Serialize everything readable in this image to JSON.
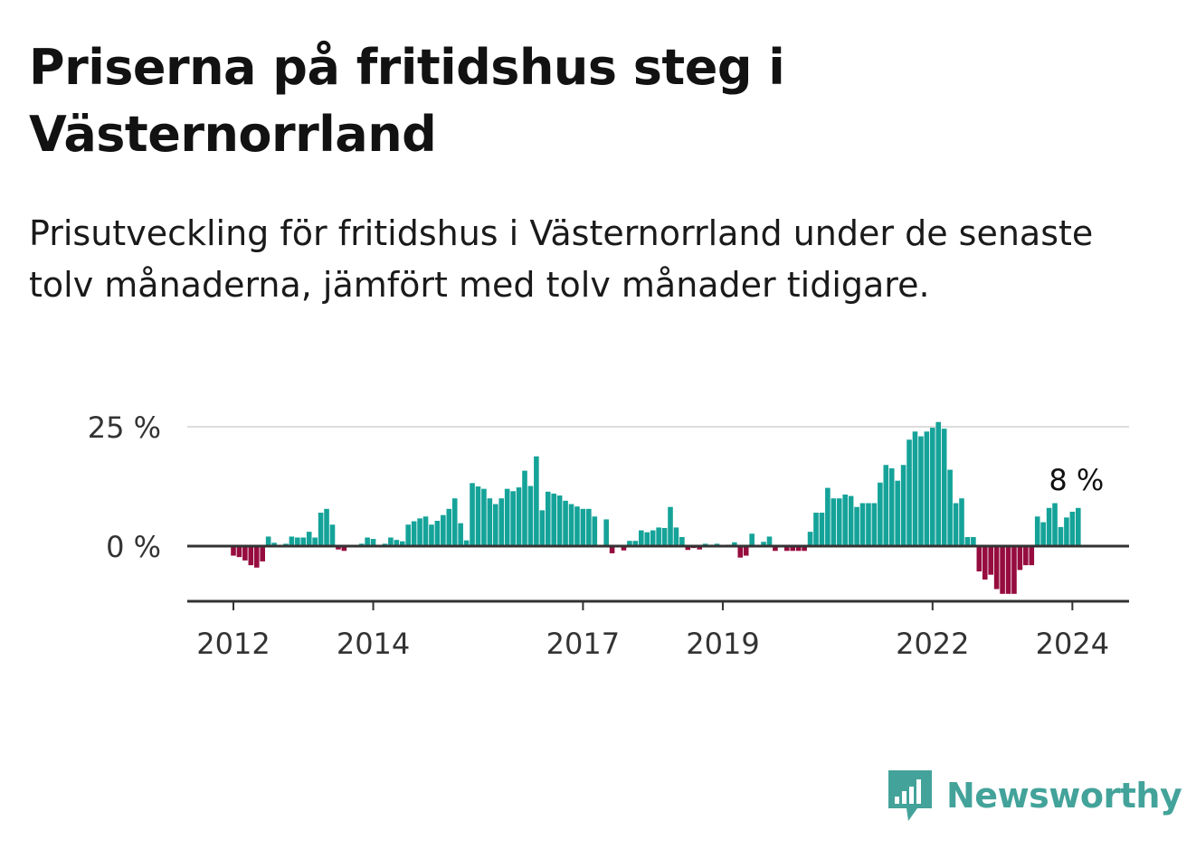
{
  "title": "Priserna på fritidshus steg i Västernorrland",
  "subtitle": "Prisutveckling för fritidshus i Västernorrland under de senaste tolv månaderna, jämfört med tolv månader tidigare.",
  "brand": {
    "name": "Newsworthy",
    "color": "#43a39a",
    "icon": "bar-chart-speech-bubble-icon"
  },
  "chart_data": {
    "type": "bar",
    "title": "",
    "xlabel": "",
    "ylabel": "",
    "ylim": [
      -11,
      27
    ],
    "yticks": [
      0,
      25
    ],
    "ytick_labels": [
      "0 %",
      "25 %"
    ],
    "xticks": [
      2012,
      2014,
      2017,
      2019,
      2022,
      2024
    ],
    "xtick_labels": [
      "2012",
      "2014",
      "2017",
      "2019",
      "2022",
      "2024"
    ],
    "colors": {
      "positive": "#15a399",
      "negative": "#960c3e",
      "grid": "#dddddd",
      "axis": "#333333"
    },
    "grid": true,
    "last_value_label": "8 %",
    "start": "2012-01",
    "values": [
      -2,
      -2.3,
      -3,
      -4,
      -4.5,
      -3.2,
      2,
      0.7,
      0,
      0.5,
      2,
      1.8,
      1.8,
      3,
      1.8,
      7,
      7.8,
      4.5,
      -0.7,
      -1,
      0,
      0,
      0.5,
      1.8,
      1.5,
      0,
      0.5,
      1.8,
      1.3,
      1,
      4.5,
      5.2,
      5.8,
      6.2,
      4.5,
      5.3,
      6.5,
      7.8,
      10,
      4.8,
      1.2,
      13.2,
      12.5,
      12,
      10,
      8.8,
      10,
      12,
      11.5,
      12.3,
      15.8,
      12.6,
      18.8,
      7.5,
      11.4,
      11,
      10.6,
      9.5,
      8.8,
      8.3,
      7.8,
      7.8,
      6.2,
      0,
      5.6,
      -1.5,
      0,
      -0.9,
      1.1,
      1.1,
      3.3,
      2.9,
      3.3,
      3.9,
      3.8,
      8.2,
      3.9,
      1.9,
      -0.8,
      -0.4,
      -0.7,
      0.5,
      0.3,
      0.5,
      0.2,
      0.3,
      0.8,
      -2.4,
      -2,
      2.6,
      0,
      0.9,
      2,
      -1,
      0.1,
      -1,
      -1,
      -1,
      -1,
      3,
      7,
      7,
      12.2,
      10,
      10,
      10.8,
      10.5,
      8.2,
      9,
      9,
      9,
      13.3,
      17,
      16.3,
      13.7,
      17,
      22.3,
      24,
      23,
      24,
      24.8,
      26,
      24.6,
      16,
      9,
      10,
      1.9,
      1.9,
      -5.3,
      -7,
      -6,
      -9,
      -10,
      -10,
      -10,
      -5,
      -4,
      -4,
      6.2,
      5,
      8,
      9,
      4,
      6,
      7.2,
      8
    ]
  }
}
